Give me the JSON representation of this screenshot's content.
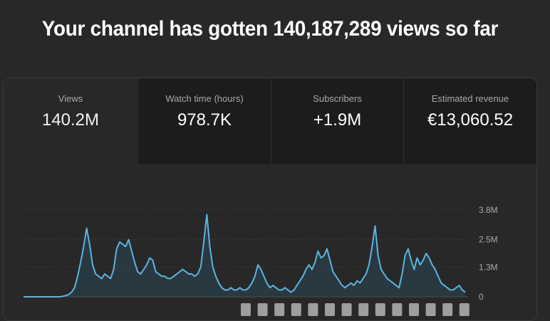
{
  "headline": "Your channel has gotten 140,187,289 views so far",
  "tabs": [
    {
      "label": "Views",
      "value": "140.2M"
    },
    {
      "label": "Watch time (hours)",
      "value": "978.7K"
    },
    {
      "label": "Subscribers",
      "value": "+1.9M"
    },
    {
      "label": "Estimated revenue",
      "value": "€13,060.52"
    }
  ],
  "colors": {
    "line": "#5bb5e0",
    "area": "#2a4452",
    "background": "#282828"
  },
  "chart_data": {
    "type": "area",
    "y_ticks": [
      "3.8M",
      "2.5M",
      "1.3M",
      "0"
    ],
    "ylim": [
      0,
      3.8
    ],
    "grid": true,
    "series": [
      {
        "values": [
          0,
          0,
          0,
          0,
          0,
          0,
          0,
          0,
          0,
          0,
          0,
          0,
          0,
          0.02,
          0.05,
          0.1,
          0.2,
          0.4,
          0.9,
          1.5,
          2.2,
          3.0,
          2.3,
          1.4,
          1.0,
          0.9,
          0.8,
          1.0,
          0.9,
          0.8,
          1.2,
          2.1,
          2.4,
          2.3,
          2.2,
          2.5,
          2.0,
          1.5,
          1.1,
          1.0,
          1.2,
          1.4,
          1.7,
          1.6,
          1.1,
          1.0,
          0.9,
          0.9,
          0.8,
          0.8,
          0.9,
          1.0,
          1.1,
          1.2,
          1.1,
          1.0,
          1.0,
          0.9,
          1.0,
          1.3,
          2.4,
          3.6,
          2.2,
          1.3,
          0.9,
          0.6,
          0.4,
          0.3,
          0.3,
          0.4,
          0.3,
          0.3,
          0.4,
          0.3,
          0.3,
          0.4,
          0.6,
          0.9,
          1.4,
          1.2,
          0.9,
          0.6,
          0.4,
          0.5,
          0.4,
          0.3,
          0.3,
          0.4,
          0.3,
          0.2,
          0.3,
          0.5,
          0.7,
          0.9,
          1.2,
          1.4,
          1.2,
          1.5,
          2.0,
          1.7,
          1.8,
          2.1,
          1.6,
          1.1,
          0.9,
          0.7,
          0.5,
          0.4,
          0.5,
          0.6,
          0.5,
          0.7,
          0.6,
          0.8,
          1.0,
          1.4,
          2.2,
          3.1,
          1.8,
          1.2,
          1.0,
          0.8,
          0.7,
          0.6,
          0.5,
          0.4,
          1.0,
          1.8,
          2.1,
          1.6,
          1.2,
          1.7,
          1.4,
          1.6,
          1.9,
          1.7,
          1.4,
          1.2,
          0.9,
          0.6,
          0.5,
          0.4,
          0.3,
          0.3,
          0.4,
          0.5,
          0.3,
          0.2
        ]
      }
    ],
    "markers": [
      "",
      "",
      "",
      "",
      "",
      "",
      "",
      "",
      "",
      "",
      "",
      "",
      "",
      ""
    ]
  }
}
